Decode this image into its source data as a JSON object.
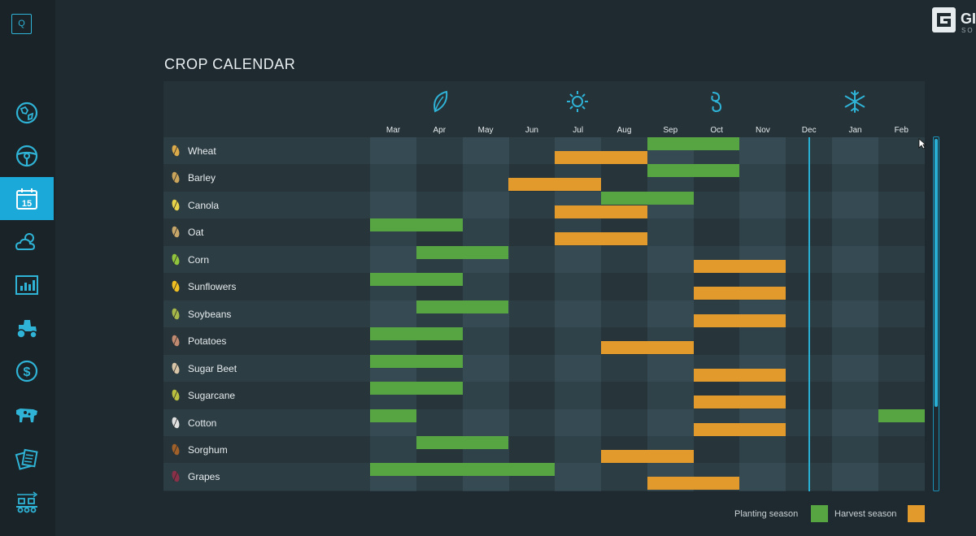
{
  "sidebar": {
    "top_label": "Q",
    "items": [
      {
        "icon": "map-icon"
      },
      {
        "icon": "steering-wheel-icon"
      },
      {
        "icon": "calendar-icon",
        "label": "15",
        "active": true
      },
      {
        "icon": "weather-icon"
      },
      {
        "icon": "statistics-icon"
      },
      {
        "icon": "tractor-icon"
      },
      {
        "icon": "finances-icon"
      },
      {
        "icon": "animals-icon"
      },
      {
        "icon": "contracts-icon"
      },
      {
        "icon": "production-icon"
      }
    ]
  },
  "logo": {
    "text": "GI",
    "sub": "SO"
  },
  "title": "CROP CALENDAR",
  "seasons": [
    {
      "name": "spring-icon",
      "month": "Apr"
    },
    {
      "name": "summer-icon",
      "month": "Jul"
    },
    {
      "name": "autumn-icon",
      "month": "Oct"
    },
    {
      "name": "winter-icon",
      "month": "Jan"
    }
  ],
  "months": [
    "Mar",
    "Apr",
    "May",
    "Jun",
    "Jul",
    "Aug",
    "Sep",
    "Oct",
    "Nov",
    "Dec",
    "Jan",
    "Feb"
  ],
  "crops": [
    {
      "name": "Wheat",
      "icon": "wheat-icon",
      "color": "#d9a94a",
      "plant": [
        [
          6,
          2
        ]
      ],
      "harvest": [
        [
          4,
          2
        ]
      ]
    },
    {
      "name": "Barley",
      "icon": "barley-icon",
      "color": "#c9a45a",
      "plant": [
        [
          6,
          2
        ]
      ],
      "harvest": [
        [
          3,
          2
        ]
      ]
    },
    {
      "name": "Canola",
      "icon": "canola-icon",
      "color": "#e8d44a",
      "plant": [
        [
          5,
          2
        ]
      ],
      "harvest": [
        [
          4,
          2
        ]
      ]
    },
    {
      "name": "Oat",
      "icon": "oat-icon",
      "color": "#c7a66a",
      "plant": [
        [
          0,
          2
        ]
      ],
      "harvest": [
        [
          4,
          2
        ]
      ]
    },
    {
      "name": "Corn",
      "icon": "corn-icon",
      "color": "#8fc43c",
      "plant": [
        [
          1,
          2
        ]
      ],
      "harvest": [
        [
          7,
          2
        ]
      ]
    },
    {
      "name": "Sunflowers",
      "icon": "sunflower-icon",
      "color": "#f0c020",
      "plant": [
        [
          0,
          2
        ]
      ],
      "harvest": [
        [
          7,
          2
        ]
      ]
    },
    {
      "name": "Soybeans",
      "icon": "soybean-icon",
      "color": "#a7b84a",
      "plant": [
        [
          1,
          2
        ]
      ],
      "harvest": [
        [
          7,
          2
        ]
      ]
    },
    {
      "name": "Potatoes",
      "icon": "potato-icon",
      "color": "#c08a70",
      "plant": [
        [
          0,
          2
        ]
      ],
      "harvest": [
        [
          5,
          2
        ]
      ]
    },
    {
      "name": "Sugar Beet",
      "icon": "sugar-beet-icon",
      "color": "#d9c6a8",
      "plant": [
        [
          0,
          2
        ]
      ],
      "harvest": [
        [
          7,
          2
        ]
      ]
    },
    {
      "name": "Sugarcane",
      "icon": "sugarcane-icon",
      "color": "#b9c040",
      "plant": [
        [
          0,
          2
        ]
      ],
      "harvest": [
        [
          7,
          2
        ]
      ]
    },
    {
      "name": "Cotton",
      "icon": "cotton-icon",
      "color": "#e0e0e0",
      "plant": [
        [
          0,
          1
        ],
        [
          11,
          1
        ]
      ],
      "harvest": [
        [
          7,
          2
        ]
      ]
    },
    {
      "name": "Sorghum",
      "icon": "sorghum-icon",
      "color": "#a0602a",
      "plant": [
        [
          1,
          2
        ]
      ],
      "harvest": [
        [
          5,
          2
        ]
      ]
    },
    {
      "name": "Grapes",
      "icon": "grapes-icon",
      "color": "#8a3048",
      "plant": [
        [
          0,
          4
        ]
      ],
      "harvest": [
        [
          6,
          2
        ]
      ]
    }
  ],
  "legend": {
    "planting": "Planting season",
    "planting_color": "#57a443",
    "harvest": "Harvest season",
    "harvest_color": "#e39a2c"
  }
}
